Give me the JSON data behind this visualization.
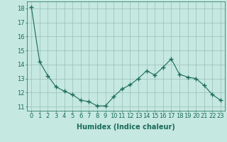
{
  "x": [
    0,
    1,
    2,
    3,
    4,
    5,
    6,
    7,
    8,
    9,
    10,
    11,
    12,
    13,
    14,
    15,
    16,
    17,
    18,
    19,
    20,
    21,
    22,
    23
  ],
  "y": [
    18.1,
    14.2,
    13.2,
    12.4,
    12.1,
    11.85,
    11.45,
    11.35,
    11.05,
    11.05,
    11.7,
    12.25,
    12.55,
    13.0,
    13.55,
    13.25,
    13.8,
    14.4,
    13.3,
    13.1,
    13.0,
    12.5,
    11.85,
    11.45
  ],
  "line_color": "#1a6b5a",
  "marker": "+",
  "marker_size": 4,
  "bg_color": "#c5e8e0",
  "grid_color": "#9bbdb6",
  "xlabel": "Humidex (Indice chaleur)",
  "ylim": [
    10.7,
    18.5
  ],
  "xlim": [
    -0.5,
    23.5
  ],
  "yticks": [
    11,
    12,
    13,
    14,
    15,
    16,
    17,
    18
  ],
  "xticks": [
    0,
    1,
    2,
    3,
    4,
    5,
    6,
    7,
    8,
    9,
    10,
    11,
    12,
    13,
    14,
    15,
    16,
    17,
    18,
    19,
    20,
    21,
    22,
    23
  ],
  "font_color": "#1a6b5a",
  "xlabel_fontsize": 7,
  "tick_fontsize": 6,
  "line_width": 0.8,
  "marker_color": "#1a6b5a"
}
